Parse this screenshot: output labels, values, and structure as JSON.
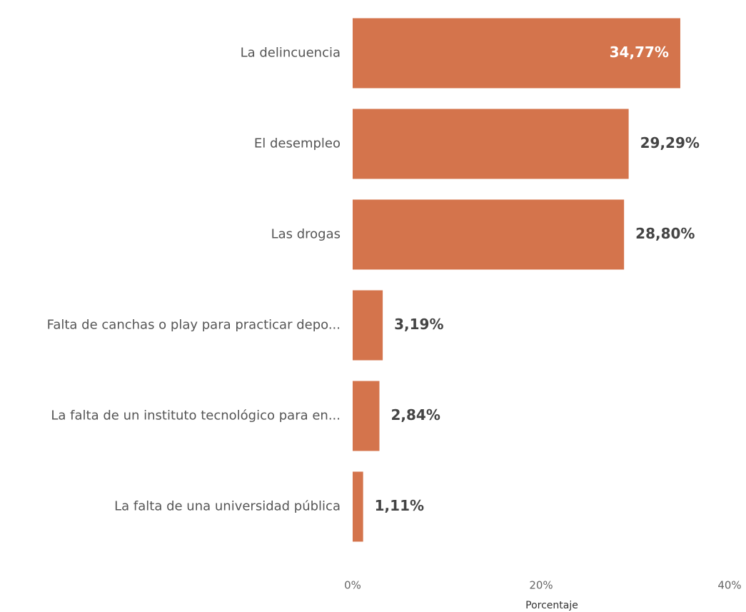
{
  "chart_data": {
    "type": "hbar",
    "categories": [
      "La delincuencia",
      "El desempleo",
      "Las drogas",
      "Falta de canchas o play para practicar depo...",
      "La falta de un instituto tecnológico para en...",
      "La falta de una universidad pública"
    ],
    "values": [
      34.77,
      29.29,
      28.8,
      3.19,
      2.84,
      1.11
    ],
    "value_labels": [
      "34,77%",
      "29,29%",
      "28,80%",
      "3,19%",
      "2,84%",
      "1,11%"
    ],
    "color": "#d4744c",
    "xlim": [
      0,
      40
    ],
    "xticks": [
      {
        "value": 0,
        "label": "0%"
      },
      {
        "value": 20,
        "label": "20%"
      },
      {
        "value": 40,
        "label": "40%"
      }
    ],
    "xlabel": "Porcentaje"
  }
}
